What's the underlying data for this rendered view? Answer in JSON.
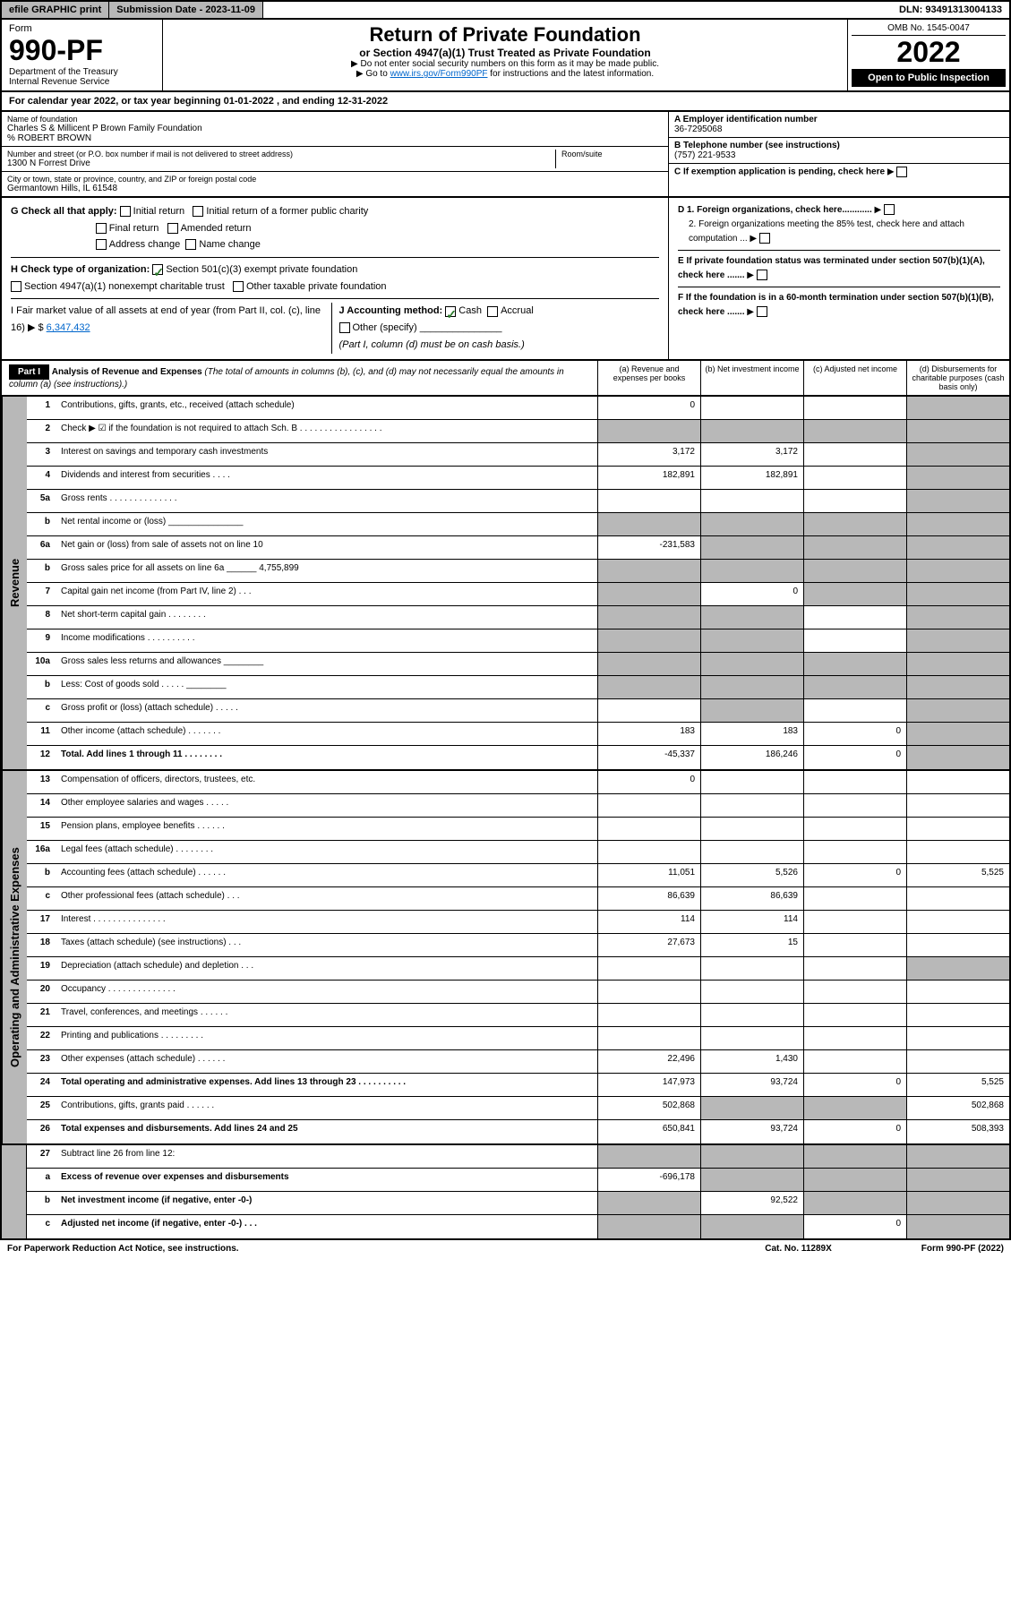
{
  "top": {
    "efile": "efile GRAPHIC print",
    "sub_label": "Submission Date - 2023-11-09",
    "dln": "DLN: 93491313004133"
  },
  "header": {
    "form_word": "Form",
    "form_num": "990-PF",
    "dept": "Department of the Treasury",
    "irs": "Internal Revenue Service",
    "title": "Return of Private Foundation",
    "subtitle": "or Section 4947(a)(1) Trust Treated as Private Foundation",
    "note1": "▶ Do not enter social security numbers on this form as it may be made public.",
    "note2_pre": "▶ Go to ",
    "note2_link": "www.irs.gov/Form990PF",
    "note2_post": " for instructions and the latest information.",
    "omb": "OMB No. 1545-0047",
    "year": "2022",
    "open": "Open to Public Inspection"
  },
  "cal_year": "For calendar year 2022, or tax year beginning 01-01-2022          , and ending 12-31-2022",
  "info": {
    "name_lbl": "Name of foundation",
    "name": "Charles S & Millicent P Brown Family Foundation",
    "co": "% ROBERT BROWN",
    "addr_lbl": "Number and street (or P.O. box number if mail is not delivered to street address)",
    "addr": "1300 N Forrest Drive",
    "room_lbl": "Room/suite",
    "city_lbl": "City or town, state or province, country, and ZIP or foreign postal code",
    "city": "Germantown Hills, IL  61548",
    "a_lbl": "A Employer identification number",
    "a_val": "36-7295068",
    "b_lbl": "B Telephone number (see instructions)",
    "b_val": "(757) 221-9533",
    "c_lbl": "C If exemption application is pending, check here"
  },
  "checks": {
    "g": "G Check all that apply:",
    "g1": "Initial return",
    "g2": "Initial return of a former public charity",
    "g3": "Final return",
    "g4": "Amended return",
    "g5": "Address change",
    "g6": "Name change",
    "h": "H Check type of organization:",
    "h1": "Section 501(c)(3) exempt private foundation",
    "h2": "Section 4947(a)(1) nonexempt charitable trust",
    "h3": "Other taxable private foundation",
    "i": "I Fair market value of all assets at end of year (from Part II, col. (c), line 16) ▶ $",
    "i_val": "6,347,432",
    "j": "J Accounting method:",
    "j1": "Cash",
    "j2": "Accrual",
    "j3": "Other (specify)",
    "j_note": "(Part I, column (d) must be on cash basis.)",
    "d1": "D 1. Foreign organizations, check here............",
    "d2": "2. Foreign organizations meeting the 85% test, check here and attach computation ...",
    "e": "E If private foundation status was terminated under section 507(b)(1)(A), check here .......",
    "f": "F If the foundation is in a 60-month termination under section 507(b)(1)(B), check here ......."
  },
  "part1": {
    "label": "Part I",
    "title": "Analysis of Revenue and Expenses",
    "sub": " (The total of amounts in columns (b), (c), and (d) may not necessarily equal the amounts in column (a) (see instructions).)",
    "col_a": "(a) Revenue and expenses per books",
    "col_b": "(b) Net investment income",
    "col_c": "(c) Adjusted net income",
    "col_d": "(d) Disbursements for charitable purposes (cash basis only)"
  },
  "side_labels": {
    "rev": "Revenue",
    "exp": "Operating and Administrative Expenses"
  },
  "rows_rev": [
    {
      "ln": "1",
      "desc": "Contributions, gifts, grants, etc., received (attach schedule)",
      "a": "0",
      "b": "",
      "c": "",
      "d": "",
      "cg": false,
      "dg": true
    },
    {
      "ln": "2",
      "desc": "Check ▶ ☑ if the foundation is not required to attach Sch. B  . . . . . . . . . . . . . . . . .",
      "a": "",
      "b": "",
      "c": "",
      "d": "",
      "ag": true,
      "bg": true,
      "cg": true,
      "dg": true
    },
    {
      "ln": "3",
      "desc": "Interest on savings and temporary cash investments",
      "a": "3,172",
      "b": "3,172",
      "c": "",
      "d": "",
      "dg": true
    },
    {
      "ln": "4",
      "desc": "Dividends and interest from securities  . . . .",
      "a": "182,891",
      "b": "182,891",
      "c": "",
      "d": "",
      "dg": true
    },
    {
      "ln": "5a",
      "desc": "Gross rents  . . . . . . . . . . . . . .",
      "a": "",
      "b": "",
      "c": "",
      "d": "",
      "dg": true
    },
    {
      "ln": "b",
      "desc": "Net rental income or (loss)  _______________",
      "a": "",
      "b": "",
      "c": "",
      "d": "",
      "ag": true,
      "bg": true,
      "cg": true,
      "dg": true
    },
    {
      "ln": "6a",
      "desc": "Net gain or (loss) from sale of assets not on line 10",
      "a": "-231,583",
      "b": "",
      "c": "",
      "d": "",
      "bg": true,
      "cg": true,
      "dg": true
    },
    {
      "ln": "b",
      "desc": "Gross sales price for all assets on line 6a ______ 4,755,899",
      "a": "",
      "b": "",
      "c": "",
      "d": "",
      "ag": true,
      "bg": true,
      "cg": true,
      "dg": true
    },
    {
      "ln": "7",
      "desc": "Capital gain net income (from Part IV, line 2)  . . .",
      "a": "",
      "b": "0",
      "c": "",
      "d": "",
      "ag": true,
      "cg": true,
      "dg": true
    },
    {
      "ln": "8",
      "desc": "Net short-term capital gain  . . . . . . . .",
      "a": "",
      "b": "",
      "c": "",
      "d": "",
      "ag": true,
      "bg": true,
      "dg": true
    },
    {
      "ln": "9",
      "desc": "Income modifications  . . . . . . . . . .",
      "a": "",
      "b": "",
      "c": "",
      "d": "",
      "ag": true,
      "bg": true,
      "dg": true
    },
    {
      "ln": "10a",
      "desc": "Gross sales less returns and allowances  ________",
      "a": "",
      "b": "",
      "c": "",
      "d": "",
      "ag": true,
      "bg": true,
      "cg": true,
      "dg": true
    },
    {
      "ln": "b",
      "desc": "Less: Cost of goods sold  . . . . .  ________",
      "a": "",
      "b": "",
      "c": "",
      "d": "",
      "ag": true,
      "bg": true,
      "cg": true,
      "dg": true
    },
    {
      "ln": "c",
      "desc": "Gross profit or (loss) (attach schedule)  . . . . .",
      "a": "",
      "b": "",
      "c": "",
      "d": "",
      "bg": true,
      "dg": true
    },
    {
      "ln": "11",
      "desc": "Other income (attach schedule)  . . . . . . .",
      "a": "183",
      "b": "183",
      "c": "0",
      "d": "",
      "dg": true
    },
    {
      "ln": "12",
      "desc": "Total. Add lines 1 through 11  . . . . . . . .",
      "a": "-45,337",
      "b": "186,246",
      "c": "0",
      "d": "",
      "bold": true,
      "dg": true
    }
  ],
  "rows_exp": [
    {
      "ln": "13",
      "desc": "Compensation of officers, directors, trustees, etc.",
      "a": "0",
      "b": "",
      "c": "",
      "d": ""
    },
    {
      "ln": "14",
      "desc": "Other employee salaries and wages  . . . . .",
      "a": "",
      "b": "",
      "c": "",
      "d": ""
    },
    {
      "ln": "15",
      "desc": "Pension plans, employee benefits  . . . . . .",
      "a": "",
      "b": "",
      "c": "",
      "d": ""
    },
    {
      "ln": "16a",
      "desc": "Legal fees (attach schedule)  . . . . . . . .",
      "a": "",
      "b": "",
      "c": "",
      "d": ""
    },
    {
      "ln": "b",
      "desc": "Accounting fees (attach schedule)  . . . . . .",
      "a": "11,051",
      "b": "5,526",
      "c": "0",
      "d": "5,525"
    },
    {
      "ln": "c",
      "desc": "Other professional fees (attach schedule)  . . .",
      "a": "86,639",
      "b": "86,639",
      "c": "",
      "d": ""
    },
    {
      "ln": "17",
      "desc": "Interest  . . . . . . . . . . . . . . .",
      "a": "114",
      "b": "114",
      "c": "",
      "d": ""
    },
    {
      "ln": "18",
      "desc": "Taxes (attach schedule) (see instructions)  . . .",
      "a": "27,673",
      "b": "15",
      "c": "",
      "d": ""
    },
    {
      "ln": "19",
      "desc": "Depreciation (attach schedule) and depletion  . . .",
      "a": "",
      "b": "",
      "c": "",
      "d": "",
      "dg": true
    },
    {
      "ln": "20",
      "desc": "Occupancy  . . . . . . . . . . . . . .",
      "a": "",
      "b": "",
      "c": "",
      "d": ""
    },
    {
      "ln": "21",
      "desc": "Travel, conferences, and meetings  . . . . . .",
      "a": "",
      "b": "",
      "c": "",
      "d": ""
    },
    {
      "ln": "22",
      "desc": "Printing and publications  . . . . . . . . .",
      "a": "",
      "b": "",
      "c": "",
      "d": ""
    },
    {
      "ln": "23",
      "desc": "Other expenses (attach schedule)  . . . . . .",
      "a": "22,496",
      "b": "1,430",
      "c": "",
      "d": ""
    },
    {
      "ln": "24",
      "desc": "Total operating and administrative expenses. Add lines 13 through 23  . . . . . . . . . .",
      "a": "147,973",
      "b": "93,724",
      "c": "0",
      "d": "5,525",
      "bold": true
    },
    {
      "ln": "25",
      "desc": "Contributions, gifts, grants paid  . . . . . .",
      "a": "502,868",
      "b": "",
      "c": "",
      "d": "502,868",
      "bg": true,
      "cg": true
    },
    {
      "ln": "26",
      "desc": "Total expenses and disbursements. Add lines 24 and 25",
      "a": "650,841",
      "b": "93,724",
      "c": "0",
      "d": "508,393",
      "bold": true
    }
  ],
  "rows_net": [
    {
      "ln": "27",
      "desc": "Subtract line 26 from line 12:",
      "a": "",
      "b": "",
      "c": "",
      "d": "",
      "ag": true,
      "bg": true,
      "cg": true,
      "dg": true
    },
    {
      "ln": "a",
      "desc": "Excess of revenue over expenses and disbursements",
      "a": "-696,178",
      "b": "",
      "c": "",
      "d": "",
      "bold": true,
      "bg": true,
      "cg": true,
      "dg": true
    },
    {
      "ln": "b",
      "desc": "Net investment income (if negative, enter -0-)",
      "a": "",
      "b": "92,522",
      "c": "",
      "d": "",
      "bold": true,
      "ag": true,
      "cg": true,
      "dg": true
    },
    {
      "ln": "c",
      "desc": "Adjusted net income (if negative, enter -0-)  . . .",
      "a": "",
      "b": "",
      "c": "0",
      "d": "",
      "bold": true,
      "ag": true,
      "bg": true,
      "dg": true
    }
  ],
  "footer": {
    "left": "For Paperwork Reduction Act Notice, see instructions.",
    "mid": "Cat. No. 11289X",
    "right": "Form 990-PF (2022)"
  }
}
